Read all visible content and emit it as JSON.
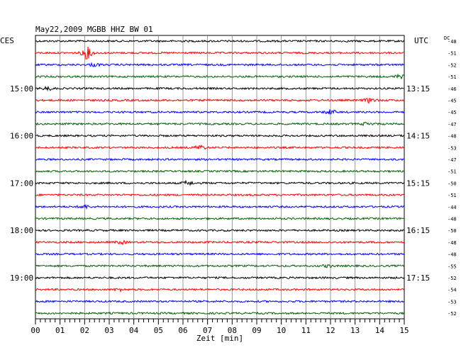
{
  "chart_data": {
    "type": "line",
    "title": "May22,2009   MGBB HHZ BW 01",
    "left_header": "CES",
    "right_header": "UTC",
    "dc_header": "DC",
    "xlabel": "Zeit [min]",
    "x_ticks": [
      "00",
      "01",
      "02",
      "03",
      "04",
      "05",
      "06",
      "07",
      "08",
      "09",
      "10",
      "11",
      "12",
      "13",
      "14",
      "15"
    ],
    "xlim": [
      0,
      15
    ],
    "trace_colors": [
      "#000000",
      "#ff0000",
      "#0000ff",
      "#006400"
    ],
    "left_hour_labels": [
      {
        "trace": 4,
        "label": "15:00"
      },
      {
        "trace": 8,
        "label": "16:00"
      },
      {
        "trace": 12,
        "label": "17:00"
      },
      {
        "trace": 16,
        "label": "18:00"
      },
      {
        "trace": 20,
        "label": "19:00"
      }
    ],
    "right_time_labels": [
      {
        "trace": 4,
        "label": "13:15"
      },
      {
        "trace": 8,
        "label": "14:15"
      },
      {
        "trace": 12,
        "label": "15:15"
      },
      {
        "trace": 16,
        "label": "16:15"
      },
      {
        "trace": 20,
        "label": "17:15"
      }
    ],
    "dc_offsets": [
      -48,
      -51,
      -52,
      -51,
      -46,
      -45,
      -45,
      -47,
      -48,
      -53,
      -47,
      -51,
      -50,
      -51,
      -44,
      -48,
      -50,
      -48,
      -48,
      -55,
      -52,
      -54,
      -53,
      -52
    ],
    "events": [
      {
        "trace": 1,
        "minute": 2.1,
        "strength": 8
      },
      {
        "trace": 2,
        "minute": 2.4,
        "strength": 2
      },
      {
        "trace": 3,
        "minute": 14.8,
        "strength": 2
      },
      {
        "trace": 4,
        "minute": 0.5,
        "strength": 2
      },
      {
        "trace": 5,
        "minute": 13.6,
        "strength": 3
      },
      {
        "trace": 6,
        "minute": 12.0,
        "strength": 3
      },
      {
        "trace": 7,
        "minute": 13.5,
        "strength": 2
      },
      {
        "trace": 9,
        "minute": 6.7,
        "strength": 3
      },
      {
        "trace": 12,
        "minute": 6.2,
        "strength": 2.5
      },
      {
        "trace": 14,
        "minute": 2.0,
        "strength": 2
      },
      {
        "trace": 17,
        "minute": 3.5,
        "strength": 2
      },
      {
        "trace": 19,
        "minute": 11.9,
        "strength": 1.5
      },
      {
        "trace": 21,
        "minute": 3.4,
        "strength": 1.5
      }
    ],
    "grid": true
  }
}
